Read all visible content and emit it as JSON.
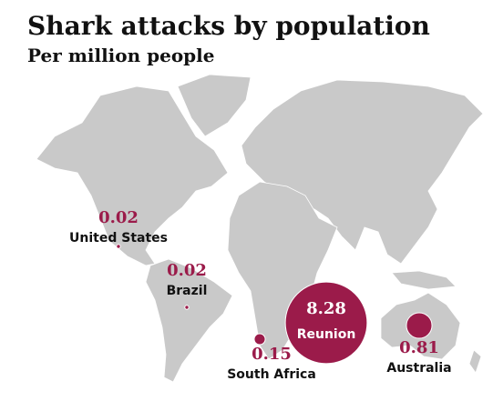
{
  "chart_data": {
    "type": "bubble-map",
    "title": "Shark attacks by population",
    "subtitle": "Per million people",
    "color": "#9b1b4a",
    "categories": [
      "United States",
      "Brazil",
      "South Africa",
      "Reunion",
      "Australia"
    ],
    "values": [
      0.02,
      0.02,
      0.15,
      8.28,
      0.81
    ]
  }
}
